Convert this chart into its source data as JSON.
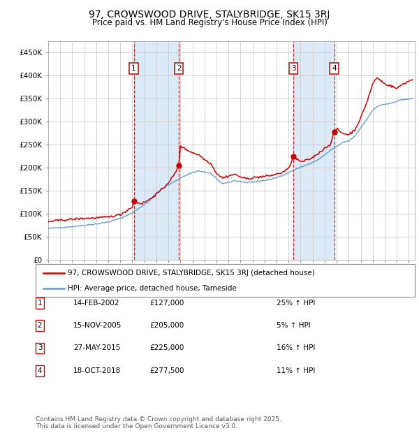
{
  "title": "97, CROWSWOOD DRIVE, STALYBRIDGE, SK15 3RJ",
  "subtitle": "Price paid vs. HM Land Registry's House Price Index (HPI)",
  "legend_line1": "97, CROWSWOOD DRIVE, STALYBRIDGE, SK15 3RJ (detached house)",
  "legend_line2": "HPI: Average price, detached house, Tameside",
  "footer": "Contains HM Land Registry data © Crown copyright and database right 2025.\nThis data is licensed under the Open Government Licence v3.0.",
  "transactions": [
    {
      "num": 1,
      "date": "14-FEB-2002",
      "price": 127000,
      "hpi_pct": "25% ↑ HPI",
      "date_decimal": 2002.12
    },
    {
      "num": 2,
      "date": "15-NOV-2005",
      "price": 205000,
      "hpi_pct": "5% ↑ HPI",
      "date_decimal": 2005.87
    },
    {
      "num": 3,
      "date": "27-MAY-2015",
      "price": 225000,
      "hpi_pct": "16% ↑ HPI",
      "date_decimal": 2015.4
    },
    {
      "num": 4,
      "date": "18-OCT-2018",
      "price": 277500,
      "hpi_pct": "11% ↑ HPI",
      "date_decimal": 2018.79
    }
  ],
  "ylim": [
    0,
    475000
  ],
  "yticks": [
    0,
    50000,
    100000,
    150000,
    200000,
    250000,
    300000,
    350000,
    400000,
    450000
  ],
  "xlim_start": 1995.0,
  "xlim_end": 2025.5,
  "background_color": "#ffffff",
  "plot_bg_color": "#ffffff",
  "grid_color": "#cccccc",
  "span_color": "#dce9f7",
  "red_line_color": "#cc0000",
  "blue_line_color": "#6699cc",
  "dashed_line_color": "#cc0000",
  "title_fontsize": 10,
  "subtitle_fontsize": 8.5,
  "axis_fontsize": 7.5,
  "legend_fontsize": 7.5,
  "table_fontsize": 7.5,
  "footer_fontsize": 6.5
}
